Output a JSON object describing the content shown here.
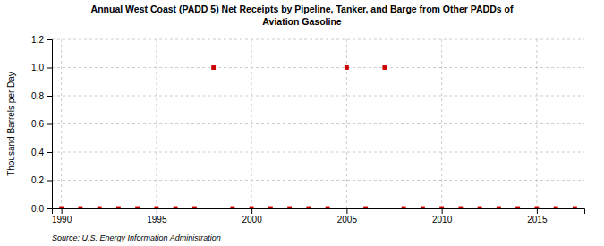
{
  "chart_data": {
    "type": "scatter",
    "title": "Annual West Coast (PADD 5) Net Receipts by Pipeline, Tanker, and Barge from Other PADDs of",
    "subtitle": "Aviation Gasoline",
    "y_label": "Thousand Barrels per Day",
    "source": "Source: U.S. Energy Information Administration",
    "x": [
      1990,
      1991,
      1992,
      1993,
      1994,
      1995,
      1996,
      1997,
      1998,
      1999,
      2000,
      2001,
      2002,
      2003,
      2004,
      2005,
      2006,
      2007,
      2008,
      2009,
      2010,
      2011,
      2012,
      2013,
      2014,
      2015,
      2016,
      2017
    ],
    "values": [
      0.0,
      0.0,
      0.0,
      0.0,
      0.0,
      0.0,
      0.0,
      0.0,
      1.0,
      0.0,
      0.0,
      0.0,
      0.0,
      0.0,
      0.0,
      1.0,
      0.0,
      1.0,
      0.0,
      0.0,
      0.0,
      0.0,
      0.0,
      0.0,
      0.0,
      0.0,
      0.0,
      0.0
    ],
    "xlim": [
      1989.5,
      2017.5
    ],
    "xticks": [
      1990,
      1995,
      2000,
      2005,
      2010,
      2015
    ],
    "ylim": [
      0.0,
      1.2
    ],
    "yticks": [
      {
        "value": 0,
        "label": "0.0"
      },
      0.2,
      0.4,
      0.6,
      0.8,
      {
        "value": 1,
        "label": "1.0"
      },
      1.2
    ],
    "color": "#cc0000",
    "marker": "square",
    "grid": true
  }
}
